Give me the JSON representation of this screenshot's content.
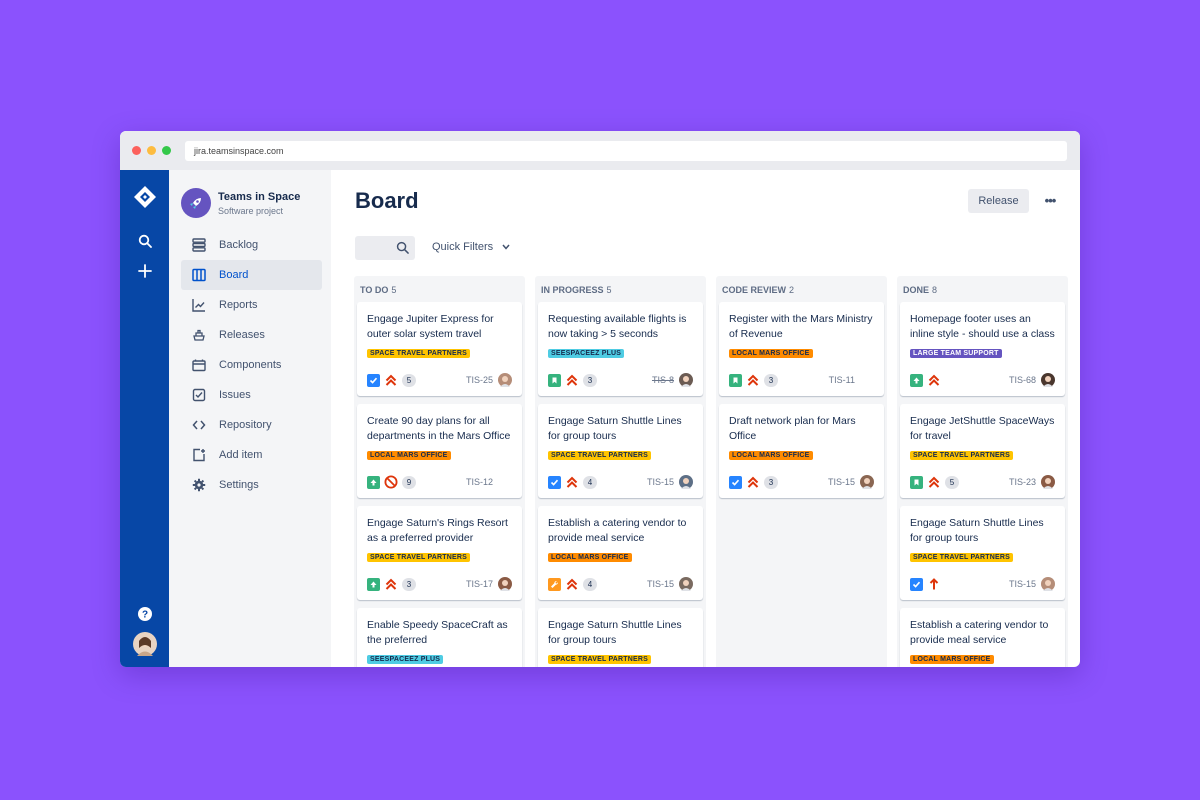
{
  "browser": {
    "url": "jira.teamsinspace.com"
  },
  "project": {
    "name": "Teams in Space",
    "type": "Software project"
  },
  "nav": [
    {
      "icon": "backlog-icon",
      "label": "Backlog",
      "active": false
    },
    {
      "icon": "board-icon",
      "label": "Board",
      "active": true
    },
    {
      "icon": "reports-icon",
      "label": "Reports",
      "active": false
    },
    {
      "icon": "releases-icon",
      "label": "Releases",
      "active": false
    },
    {
      "icon": "components-icon",
      "label": "Components",
      "active": false
    },
    {
      "icon": "issues-icon",
      "label": "Issues",
      "active": false
    },
    {
      "icon": "repository-icon",
      "label": "Repository",
      "active": false
    },
    {
      "icon": "add-item-icon",
      "label": "Add item",
      "active": false
    },
    {
      "icon": "settings-icon",
      "label": "Settings",
      "active": false
    }
  ],
  "page": {
    "title": "Board",
    "release_label": "Release",
    "quick_filters_label": "Quick Filters"
  },
  "colors": {
    "accent": "#0052cc",
    "global_nav": "#0747a6",
    "background": "#8b52fd"
  },
  "label_colors": {
    "SPACE TRAVEL PARTNERS": "#ffc400",
    "LOCAL MARS OFFICE": "#ff8b00",
    "SEESPACEEZ PLUS": "#4fcce3",
    "LARGE TEAM SUPPORT": "#6554c0"
  },
  "columns": [
    {
      "name": "TO DO",
      "count": "5",
      "cards": [
        {
          "title": "Engage Jupiter Express for outer solar system travel",
          "label": "SPACE TRAVEL PARTNERS",
          "type": "task",
          "priority": "highest",
          "estimate": "5",
          "key": "TIS-25",
          "strike": false,
          "avatar": "#b58d78"
        },
        {
          "title": "Create 90 day plans for all departments in the Mars Office",
          "label": "LOCAL MARS OFFICE",
          "type": "improvement",
          "priority": "blocker",
          "estimate": "9",
          "key": "TIS-12",
          "strike": false,
          "avatar": ""
        },
        {
          "title": "Engage Saturn's Rings Resort as a preferred provider",
          "label": "SPACE TRAVEL PARTNERS",
          "type": "improvement",
          "priority": "highest",
          "estimate": "3",
          "key": "TIS-17",
          "strike": false,
          "avatar": "#8a5a44"
        },
        {
          "title": "Enable Speedy SpaceCraft as the preferred",
          "label": "SEESPACEEZ PLUS",
          "type": "",
          "priority": "",
          "estimate": "",
          "key": "",
          "strike": false,
          "avatar": ""
        }
      ]
    },
    {
      "name": "IN PROGRESS",
      "count": "5",
      "cards": [
        {
          "title": "Requesting available flights is now taking > 5 seconds",
          "label": "SEESPACEEZ PLUS",
          "type": "story",
          "priority": "highest",
          "estimate": "3",
          "key": "TIS-8",
          "strike": true,
          "avatar": "#6b5b53"
        },
        {
          "title": "Engage Saturn Shuttle Lines for group tours",
          "label": "SPACE TRAVEL PARTNERS",
          "type": "task",
          "priority": "highest",
          "estimate": "4",
          "key": "TIS-15",
          "strike": false,
          "avatar": "#5d6f86"
        },
        {
          "title": "Establish a catering vendor to provide meal service",
          "label": "LOCAL MARS OFFICE",
          "type": "bug-fix",
          "priority": "highest",
          "estimate": "4",
          "key": "TIS-15",
          "strike": false,
          "avatar": "#7a6a60"
        },
        {
          "title": "Engage Saturn Shuttle Lines for group tours",
          "label": "SPACE TRAVEL PARTNERS",
          "type": "",
          "priority": "",
          "estimate": "",
          "key": "",
          "strike": false,
          "avatar": ""
        }
      ]
    },
    {
      "name": "CODE REVIEW",
      "count": "2",
      "cards": [
        {
          "title": "Register with the Mars Ministry of Revenue",
          "label": "LOCAL MARS OFFICE",
          "type": "story",
          "priority": "highest",
          "estimate": "3",
          "key": "TIS-11",
          "strike": false,
          "avatar": ""
        },
        {
          "title": "Draft network plan for Mars Office",
          "label": "LOCAL MARS OFFICE",
          "type": "task",
          "priority": "highest",
          "estimate": "3",
          "key": "TIS-15",
          "strike": false,
          "avatar": "#8a6652"
        }
      ]
    },
    {
      "name": "DONE",
      "count": "8",
      "cards": [
        {
          "title": "Homepage footer uses an inline style - should use a class",
          "label": "LARGE TEAM SUPPORT",
          "type": "improvement",
          "priority": "highest",
          "estimate": "",
          "key": "TIS-68",
          "strike": false,
          "avatar": "#4a372e"
        },
        {
          "title": "Engage JetShuttle SpaceWays for travel",
          "label": "SPACE TRAVEL PARTNERS",
          "type": "story",
          "priority": "highest",
          "estimate": "5",
          "key": "TIS-23",
          "strike": false,
          "avatar": "#8a5a44"
        },
        {
          "title": "Engage Saturn Shuttle Lines for group tours",
          "label": "SPACE TRAVEL PARTNERS",
          "type": "task",
          "priority": "high",
          "estimate": "",
          "key": "TIS-15",
          "strike": false,
          "avatar": "#b58d78"
        },
        {
          "title": "Establish a catering vendor to provide meal service",
          "label": "LOCAL MARS OFFICE",
          "type": "",
          "priority": "",
          "estimate": "",
          "key": "",
          "strike": false,
          "avatar": ""
        }
      ]
    }
  ]
}
